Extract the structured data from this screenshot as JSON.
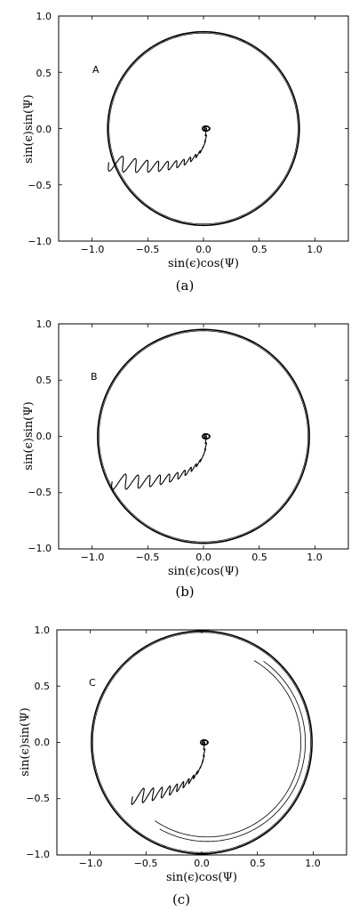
{
  "chart_data": [
    {
      "type": "line",
      "panel_letter": "A",
      "caption": "(a)",
      "xlabel": "sin(ϵ)cos(Ψ)",
      "ylabel": "sin(ϵ)sin(Ψ)",
      "xlim": [
        -1.3,
        1.3
      ],
      "ylim": [
        -1.0,
        1.0
      ],
      "xticks": [
        "−1.0",
        "−0.5",
        "0.0",
        "0.5",
        "1.0"
      ],
      "xtick_values": [
        -1.0,
        -0.5,
        0.0,
        0.5,
        1.0
      ],
      "yticks": [
        "1.0",
        "0.5",
        "0.0",
        "−0.5",
        "−1.0"
      ],
      "ytick_values": [
        1.0,
        0.5,
        0.0,
        -0.5,
        -1.0
      ],
      "color": "#000000",
      "series": [
        {
          "shape": "circle",
          "center": [
            0.0,
            0.0
          ],
          "radius": 0.86
        },
        {
          "shape": "spiral",
          "start": [
            0.02,
            0.0
          ],
          "end": [
            -0.85,
            -0.3
          ],
          "oscillations": 14
        }
      ]
    },
    {
      "type": "line",
      "panel_letter": "B",
      "caption": "(b)",
      "xlabel": "sin(ϵ)cos(Ψ)",
      "ylabel": "sin(ϵ)sin(Ψ)",
      "xlim": [
        -1.3,
        1.3
      ],
      "ylim": [
        -1.0,
        1.0
      ],
      "xticks": [
        "−1.0",
        "−0.5",
        "0.0",
        "0.5",
        "1.0"
      ],
      "xtick_values": [
        -1.0,
        -0.5,
        0.0,
        0.5,
        1.0
      ],
      "yticks": [
        "1.0",
        "0.5",
        "0.0",
        "−0.5",
        "−1.0"
      ],
      "ytick_values": [
        1.0,
        0.5,
        0.0,
        -0.5,
        -1.0
      ],
      "color": "#000000",
      "series": [
        {
          "shape": "circle",
          "center": [
            0.0,
            0.0
          ],
          "radius": 0.95
        },
        {
          "shape": "spiral",
          "start": [
            0.02,
            0.0
          ],
          "end": [
            -0.82,
            -0.4
          ],
          "oscillations": 14
        }
      ]
    },
    {
      "type": "line",
      "panel_letter": "C",
      "caption": "(c)",
      "xlabel": "sin(ϵ)cos(Ψ)",
      "ylabel": "sin(ϵ)sin(Ψ)",
      "xlim": [
        -1.3,
        1.3
      ],
      "ylim": [
        -1.0,
        1.0
      ],
      "xticks": [
        "−1.0",
        "−0.5",
        "0.0",
        "0.5",
        "1.0"
      ],
      "xtick_values": [
        -1.0,
        -0.5,
        0.0,
        0.5,
        1.0
      ],
      "yticks": [
        "1.0",
        "0.5",
        "0.0",
        "−0.5",
        "−1.0"
      ],
      "ytick_values": [
        1.0,
        0.5,
        0.0,
        -0.5,
        -1.0
      ],
      "color": "#000000",
      "series": [
        {
          "shape": "circle",
          "center": [
            0.0,
            0.0
          ],
          "radius": 0.99
        },
        {
          "shape": "spiral",
          "start": [
            0.02,
            0.0
          ],
          "end": [
            -0.62,
            -0.48
          ],
          "oscillations": 14
        },
        {
          "shape": "arc",
          "center": [
            0.05,
            0.0
          ],
          "radius": 0.88,
          "from_deg": 55,
          "to_deg": 240
        },
        {
          "shape": "arc",
          "center": [
            0.05,
            0.0
          ],
          "radius": 0.84,
          "from_deg": 60,
          "to_deg": 235
        }
      ]
    }
  ]
}
